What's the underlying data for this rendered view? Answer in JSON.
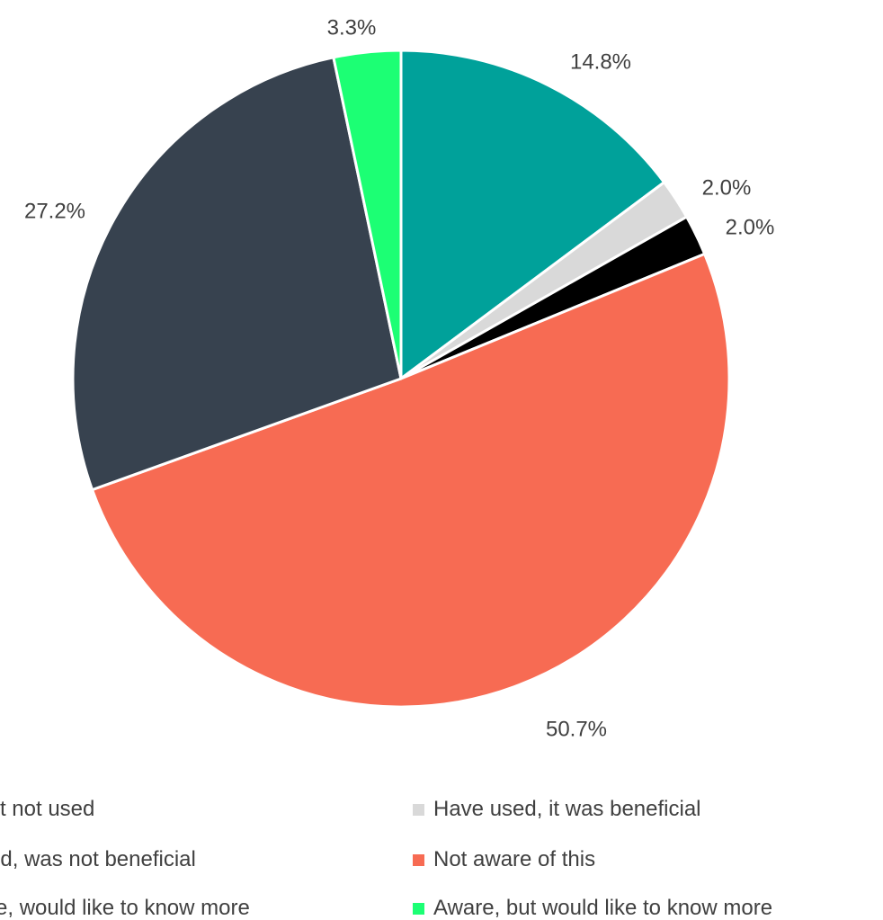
{
  "chart_data": {
    "type": "pie",
    "title": "",
    "slices": [
      {
        "label": "Aware but not used",
        "value": 14.8,
        "display": "14.8%",
        "color": "#00A19A"
      },
      {
        "label": "Have used, it was beneficial",
        "value": 2.0,
        "display": "2.0%",
        "color": "#D9D9D9"
      },
      {
        "label": "Have used, was not beneficial",
        "value": 2.0,
        "display": "2.0%",
        "color": "#000000"
      },
      {
        "label": "Not aware of this",
        "value": 50.7,
        "display": "50.7%",
        "color": "#F76B53"
      },
      {
        "label": "Not aware, would like to know more",
        "value": 27.2,
        "display": "27.2%",
        "color": "#37424F"
      },
      {
        "label": "Aware, but would like to know more",
        "value": 3.3,
        "display": "3.3%",
        "color": "#1CFF74"
      }
    ],
    "legend": {
      "position": "bottom",
      "items": [
        "Aware but not used",
        "Have used, it was beneficial",
        "Have used, was not beneficial",
        "Not aware of this",
        "Not aware, would like to know more",
        "Aware, but would like to know more"
      ]
    }
  }
}
